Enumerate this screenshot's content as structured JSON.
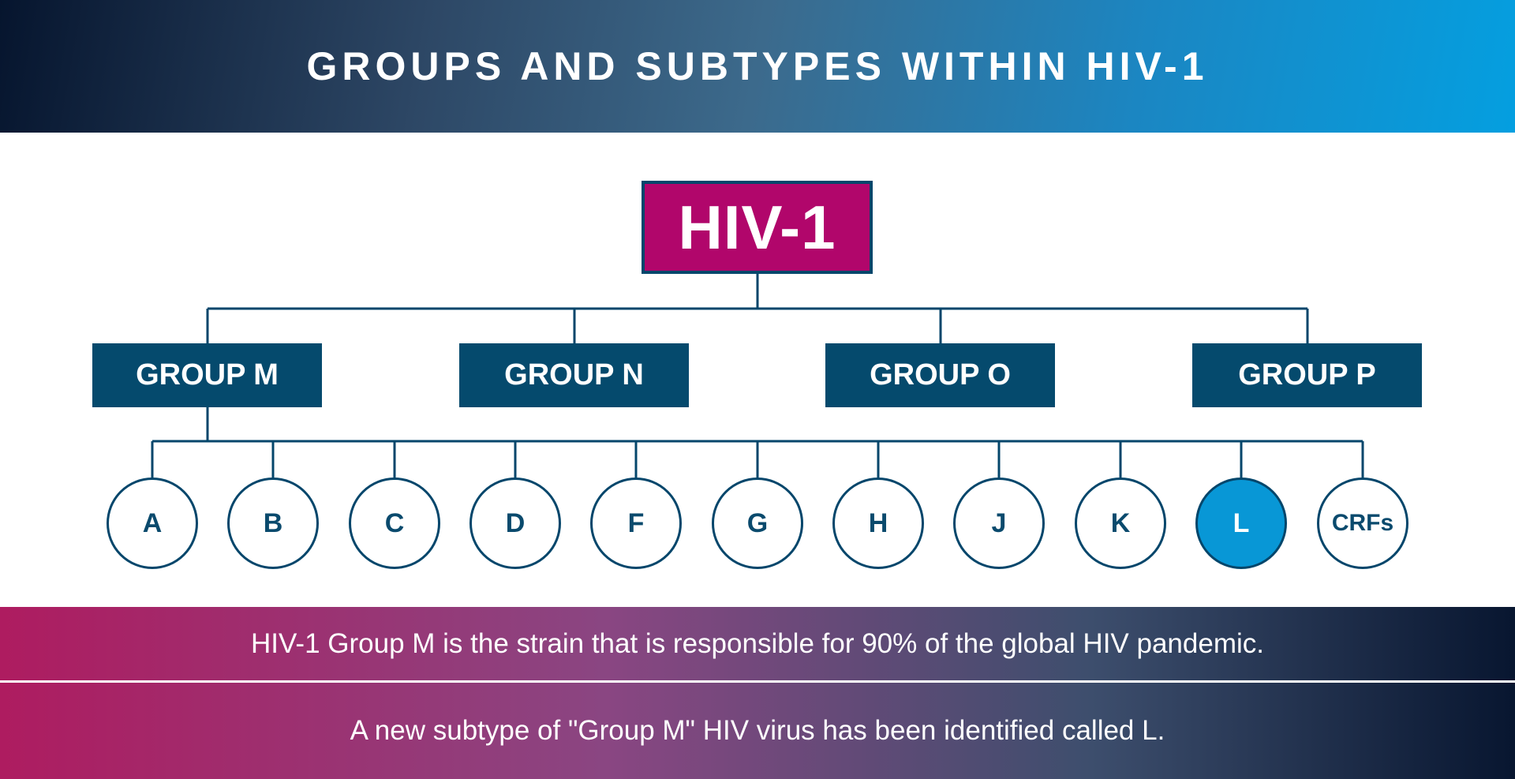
{
  "header": {
    "title": "GROUPS AND SUBTYPES WITHIN HIV-1"
  },
  "diagram": {
    "root": "HIV-1",
    "groups": [
      "GROUP M",
      "GROUP N",
      "GROUP O",
      "GROUP P"
    ],
    "subtypes": [
      "A",
      "B",
      "C",
      "D",
      "F",
      "G",
      "H",
      "J",
      "K",
      "L",
      "CRFs"
    ],
    "highlighted_subtype": "L"
  },
  "notes": [
    "HIV-1 Group M is the strain that is responsible for 90% of the global HIV pandemic.",
    "A new subtype of \"Group M\" HIV virus has been identified called L."
  ],
  "colors": {
    "root_fill": "#b1066b",
    "group_fill": "#054a6d",
    "line": "#04466b",
    "highlight_fill": "#0897d6"
  }
}
